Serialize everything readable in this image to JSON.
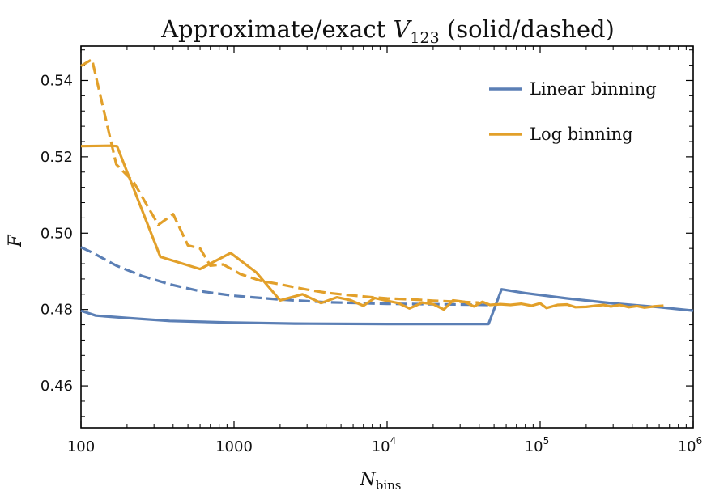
{
  "chart_data": {
    "type": "line",
    "title_prefix": "Approximate/exact ",
    "title_var": "V",
    "title_sub": "123",
    "title_suffix": " (solid/dashed)",
    "xlabel_main": "N",
    "xlabel_sub": "bins",
    "ylabel": "F",
    "xscale": "log",
    "xlim": [
      100,
      1000000
    ],
    "ylim": [
      0.449,
      0.549
    ],
    "xticks": [
      {
        "value": 100,
        "label": "100",
        "sup": ""
      },
      {
        "value": 1000,
        "label": "1000",
        "sup": ""
      },
      {
        "value": 10000,
        "label": "10",
        "sup": "4"
      },
      {
        "value": 100000,
        "label": "10",
        "sup": "5"
      },
      {
        "value": 1000000,
        "label": "10",
        "sup": "6"
      }
    ],
    "yticks": [
      0.46,
      0.48,
      0.5,
      0.52,
      0.54
    ],
    "ytick_labels": [
      "0.46",
      "0.48",
      "0.50",
      "0.52",
      "0.54"
    ],
    "grid": false,
    "legend": {
      "placement": "top-right",
      "entries": [
        {
          "label": "Linear binning",
          "color": "#5b7fb5"
        },
        {
          "label": "Log binning",
          "color": "#e2a02a"
        }
      ]
    },
    "series": [
      {
        "name": "Linear binning",
        "style": "solid",
        "color": "#5b7fb5",
        "points": [
          [
            100,
            0.4797
          ],
          [
            125,
            0.4784
          ],
          [
            200,
            0.4778
          ],
          [
            380,
            0.477
          ],
          [
            900,
            0.4766
          ],
          [
            2500,
            0.4763
          ],
          [
            10000,
            0.4762
          ],
          [
            30000,
            0.4762
          ],
          [
            46000,
            0.4762
          ],
          [
            56000,
            0.4853
          ],
          [
            80000,
            0.4843
          ],
          [
            150000,
            0.4829
          ],
          [
            300000,
            0.4816
          ],
          [
            600000,
            0.4806
          ],
          [
            1000000,
            0.4797
          ]
        ]
      },
      {
        "name": "Linear binning",
        "style": "dashed",
        "color": "#5b7fb5",
        "points": [
          [
            100,
            0.4963
          ],
          [
            120,
            0.4948
          ],
          [
            170,
            0.4915
          ],
          [
            250,
            0.4888
          ],
          [
            380,
            0.4866
          ],
          [
            600,
            0.4848
          ],
          [
            1000,
            0.4836
          ],
          [
            2000,
            0.4826
          ],
          [
            4000,
            0.4819
          ],
          [
            10000,
            0.4815
          ],
          [
            30000,
            0.4813
          ],
          [
            46000,
            0.4812
          ]
        ]
      },
      {
        "name": "Log binning",
        "style": "solid",
        "color": "#e2a02a",
        "points": [
          [
            100,
            0.5228
          ],
          [
            155,
            0.5229
          ],
          [
            172,
            0.5228
          ],
          [
            330,
            0.4938
          ],
          [
            600,
            0.4906
          ],
          [
            950,
            0.4948
          ],
          [
            1400,
            0.4897
          ],
          [
            2000,
            0.4824
          ],
          [
            2800,
            0.484
          ],
          [
            3700,
            0.4817
          ],
          [
            4700,
            0.4832
          ],
          [
            5700,
            0.4825
          ],
          [
            7000,
            0.481
          ],
          [
            8300,
            0.483
          ],
          [
            10200,
            0.4822
          ],
          [
            11800,
            0.4817
          ],
          [
            14000,
            0.4803
          ],
          [
            17000,
            0.4818
          ],
          [
            20000,
            0.4814
          ],
          [
            23500,
            0.48
          ],
          [
            27000,
            0.4824
          ],
          [
            32000,
            0.482
          ],
          [
            37000,
            0.4808
          ],
          [
            42000,
            0.482
          ],
          [
            47000,
            0.4812
          ],
          [
            55000,
            0.4814
          ],
          [
            64000,
            0.4812
          ],
          [
            75000,
            0.4815
          ],
          [
            88000,
            0.481
          ],
          [
            100000,
            0.4816
          ],
          [
            110000,
            0.4804
          ],
          [
            130000,
            0.4812
          ],
          [
            150000,
            0.4813
          ],
          [
            170000,
            0.4806
          ],
          [
            200000,
            0.4807
          ],
          [
            230000,
            0.481
          ],
          [
            260000,
            0.4812
          ],
          [
            290000,
            0.4808
          ],
          [
            330000,
            0.4812
          ],
          [
            380000,
            0.4806
          ],
          [
            430000,
            0.4809
          ],
          [
            480000,
            0.4805
          ],
          [
            550000,
            0.4808
          ],
          [
            640000,
            0.481
          ]
        ]
      },
      {
        "name": "Log binning",
        "style": "dashed",
        "color": "#e2a02a",
        "points": [
          [
            100,
            0.5438
          ],
          [
            118,
            0.5455
          ],
          [
            170,
            0.518
          ],
          [
            220,
            0.5135
          ],
          [
            320,
            0.5022
          ],
          [
            400,
            0.505
          ],
          [
            500,
            0.4968
          ],
          [
            600,
            0.496
          ],
          [
            700,
            0.4915
          ],
          [
            850,
            0.4918
          ],
          [
            1100,
            0.4893
          ],
          [
            1500,
            0.4875
          ],
          [
            2000,
            0.4866
          ],
          [
            3000,
            0.4852
          ],
          [
            4000,
            0.4844
          ],
          [
            5500,
            0.4838
          ],
          [
            7500,
            0.4833
          ],
          [
            10000,
            0.4829
          ],
          [
            15000,
            0.4826
          ],
          [
            20000,
            0.4823
          ],
          [
            30000,
            0.482
          ],
          [
            40000,
            0.4818
          ]
        ]
      }
    ]
  }
}
